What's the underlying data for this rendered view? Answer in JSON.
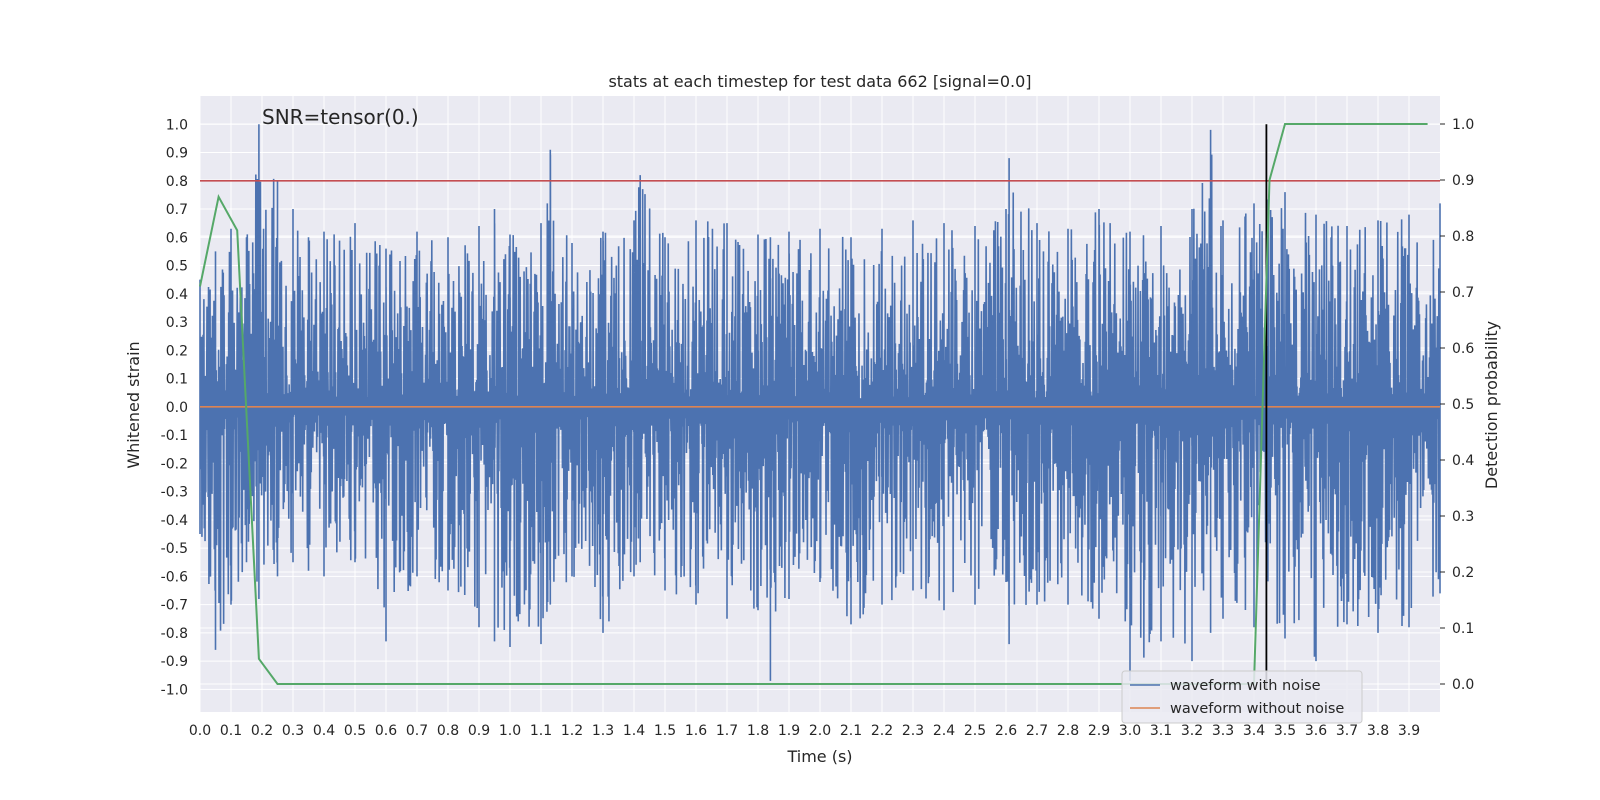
{
  "chart_data": {
    "type": "line",
    "title": "stats at each timestep for test data 662 [signal=0.0]",
    "xlabel": "Time (s)",
    "ylabel": "Whitened strain",
    "y2label": "Detection probability",
    "annotation": "SNR=tensor(0.)",
    "xlim": [
      0.0,
      4.0
    ],
    "ylim": [
      -1.08,
      1.1
    ],
    "y2lim": [
      -0.05,
      1.05
    ],
    "x_ticks": [
      "0.0",
      "0.1",
      "0.2",
      "0.3",
      "0.4",
      "0.5",
      "0.6",
      "0.7",
      "0.8",
      "0.9",
      "1.0",
      "1.1",
      "1.2",
      "1.3",
      "1.4",
      "1.5",
      "1.6",
      "1.7",
      "1.8",
      "1.9",
      "2.0",
      "2.1",
      "2.2",
      "2.3",
      "2.4",
      "2.5",
      "2.6",
      "2.7",
      "2.8",
      "2.9",
      "3.0",
      "3.1",
      "3.2",
      "3.3",
      "3.4",
      "3.5",
      "3.6",
      "3.7",
      "3.8",
      "3.9"
    ],
    "y_ticks": [
      "1.0",
      "0.9",
      "0.8",
      "0.7",
      "0.6",
      "0.5",
      "0.4",
      "0.3",
      "0.2",
      "0.1",
      "0.0",
      "-0.1",
      "-0.2",
      "-0.3",
      "-0.4",
      "-0.5",
      "-0.6",
      "-0.7",
      "-0.8",
      "-0.9",
      "-1.0"
    ],
    "y2_ticks": [
      "1.0",
      "0.9",
      "0.8",
      "0.7",
      "0.6",
      "0.5",
      "0.4",
      "0.3",
      "0.2",
      "0.1",
      "0.0"
    ],
    "threshold": 0.8,
    "marker_time": 3.44,
    "noise_envelope": {
      "x": [
        0.0,
        0.05,
        0.1,
        0.15,
        0.19,
        0.25,
        0.3,
        0.35,
        0.4,
        0.5,
        0.6,
        0.7,
        0.8,
        0.9,
        0.95,
        1.0,
        1.1,
        1.13,
        1.2,
        1.3,
        1.4,
        1.42,
        1.5,
        1.6,
        1.7,
        1.8,
        1.84,
        1.9,
        2.0,
        2.1,
        2.2,
        2.3,
        2.4,
        2.5,
        2.6,
        2.61,
        2.7,
        2.8,
        2.9,
        3.0,
        3.1,
        3.2,
        3.26,
        3.3,
        3.4,
        3.5,
        3.6,
        3.7,
        3.8,
        3.9,
        4.0
      ],
      "upper": [
        0.45,
        0.55,
        0.63,
        0.6,
        1.0,
        0.8,
        0.7,
        0.6,
        0.62,
        0.65,
        0.56,
        0.62,
        0.6,
        0.64,
        0.7,
        0.61,
        0.65,
        0.91,
        0.58,
        0.62,
        0.66,
        0.82,
        0.6,
        0.66,
        0.65,
        0.61,
        0.6,
        0.62,
        0.63,
        0.6,
        0.63,
        0.66,
        0.65,
        0.64,
        0.7,
        0.88,
        0.65,
        0.63,
        0.7,
        0.62,
        0.64,
        0.7,
        0.98,
        0.66,
        0.72,
        0.76,
        0.68,
        0.64,
        0.66,
        0.68,
        0.72
      ],
      "lower": [
        -0.45,
        -0.86,
        -0.7,
        -0.55,
        -0.68,
        -0.6,
        -0.55,
        -0.58,
        -0.6,
        -0.55,
        -0.83,
        -0.6,
        -0.65,
        -0.78,
        -0.83,
        -0.85,
        -0.84,
        -0.7,
        -0.6,
        -0.8,
        -0.6,
        -0.55,
        -0.65,
        -0.7,
        -0.75,
        -0.72,
        -0.97,
        -0.68,
        -0.62,
        -0.77,
        -0.7,
        -0.65,
        -0.72,
        -0.7,
        -0.62,
        -0.84,
        -0.7,
        -0.7,
        -0.75,
        -0.97,
        -0.83,
        -0.9,
        -0.8,
        -0.75,
        -0.78,
        -0.82,
        -0.9,
        -0.77,
        -0.8,
        -0.78,
        -0.66
      ]
    },
    "detection_probability": {
      "x": [
        0.0,
        0.06,
        0.12,
        0.19,
        0.25,
        2.95,
        3.4,
        3.45,
        3.5,
        3.96
      ],
      "y": [
        0.71,
        0.87,
        0.81,
        0.045,
        0.0,
        0.0,
        0.0,
        0.9,
        1.0,
        1.0
      ]
    },
    "series": [
      {
        "name": "waveform with noise",
        "color": "#4c72b0"
      },
      {
        "name": "waveform without noise",
        "color": "#dd8452"
      }
    ],
    "prob_color": "#55a868",
    "threshold_color": "#c44e52",
    "marker_color": "#000000",
    "legend_position": "lower-right",
    "grid": true
  }
}
